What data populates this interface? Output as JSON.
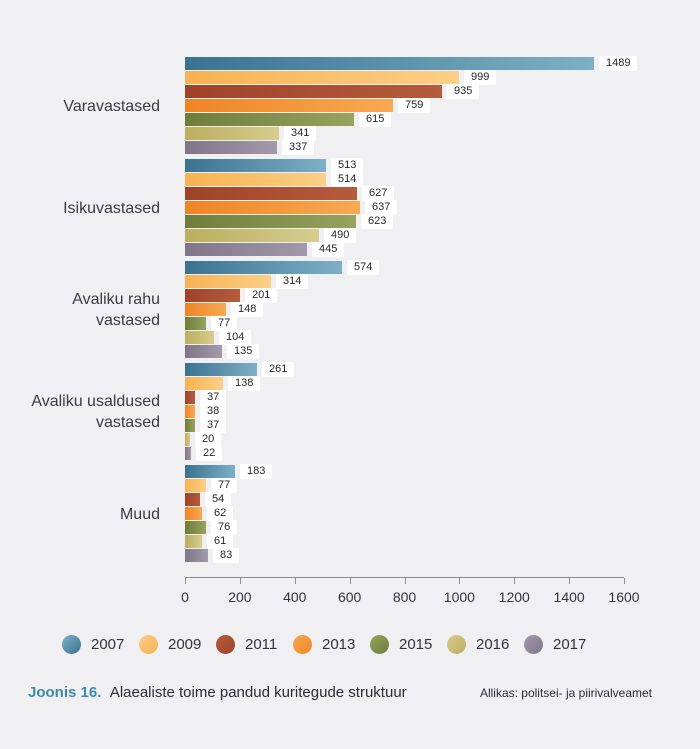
{
  "page": {
    "background": "#f0f0f2"
  },
  "chart_data": {
    "type": "bar",
    "orientation": "horizontal",
    "title": "",
    "xlabel": "",
    "ylabel": "",
    "xlim": [
      0,
      1600
    ],
    "x_ticks": [
      0,
      200,
      400,
      600,
      800,
      1000,
      1200,
      1400,
      1600
    ],
    "grid": false,
    "legend_position": "bottom",
    "categories": [
      {
        "label": "Varavastased",
        "lines": [
          "Varavastased"
        ]
      },
      {
        "label": "Isikuvastased",
        "lines": [
          "Isikuvastased"
        ]
      },
      {
        "label": "Avaliku rahu vastased",
        "lines": [
          "Avaliku rahu",
          "vastased"
        ]
      },
      {
        "label": "Avaliku usaldused vastased",
        "lines": [
          "Avaliku usaldused",
          "vastased"
        ]
      },
      {
        "label": "Muud",
        "lines": [
          "Muud"
        ]
      }
    ],
    "series": [
      {
        "name": "2007",
        "colors": [
          "#3a7290",
          "#7db0c6"
        ],
        "values": [
          1489,
          513,
          574,
          261,
          183
        ]
      },
      {
        "name": "2009",
        "colors": [
          "#f6b252",
          "#fccf87"
        ],
        "values": [
          999,
          514,
          314,
          138,
          77
        ]
      },
      {
        "name": "2011",
        "colors": [
          "#9e4229",
          "#b55c3c"
        ],
        "values": [
          935,
          627,
          201,
          37,
          54
        ]
      },
      {
        "name": "2013",
        "colors": [
          "#ef8426",
          "#f8a953"
        ],
        "values": [
          759,
          637,
          148,
          38,
          62
        ]
      },
      {
        "name": "2015",
        "colors": [
          "#6f7c3b",
          "#97a35e"
        ],
        "values": [
          615,
          623,
          77,
          37,
          76
        ]
      },
      {
        "name": "2016",
        "colors": [
          "#bbae5e",
          "#d6cd8f"
        ],
        "values": [
          341,
          490,
          104,
          20,
          61
        ]
      },
      {
        "name": "2017",
        "colors": [
          "#7f7587",
          "#a29aab"
        ],
        "values": [
          337,
          445,
          135,
          22,
          83
        ]
      }
    ]
  },
  "caption": {
    "figure_label": "Joonis 16.",
    "figure_title": "Alaealiste toime pandud kuritegude struktuur",
    "source": "Allikas: politsei- ja piirivalveamet",
    "label_color": "#3e8aa8"
  }
}
